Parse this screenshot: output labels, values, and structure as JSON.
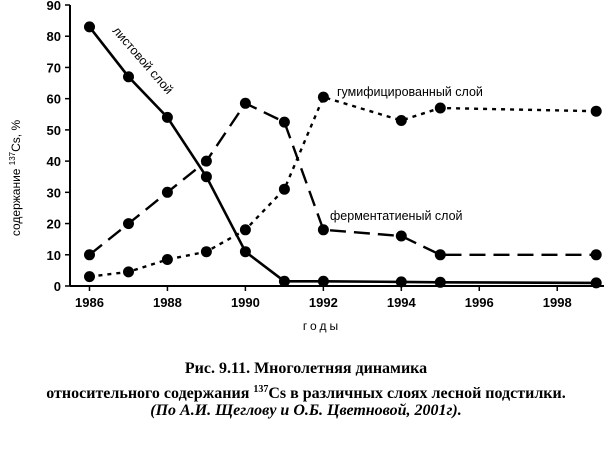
{
  "chart_data": {
    "type": "line",
    "xlabel": "годы",
    "ylabel": "содержание",
    "ylabel_sup": "137",
    "ylabel_tail": "Cs, %",
    "xlim": [
      1985.5,
      1999.2
    ],
    "ylim": [
      0,
      90
    ],
    "x_ticks": [
      "1986",
      "1988",
      "1990",
      "1992",
      "1994",
      "1996",
      "1998"
    ],
    "y_ticks": [
      "0",
      "10",
      "20",
      "30",
      "40",
      "50",
      "60",
      "70",
      "80",
      "90"
    ],
    "grid": false,
    "series": [
      {
        "name": "листовой слой",
        "style": "solid",
        "x": [
          1986,
          1987,
          1988,
          1989,
          1990,
          1991,
          1992,
          1994,
          1995,
          1999
        ],
        "y": [
          83,
          67,
          54,
          35,
          11,
          1.5,
          1.5,
          1.3,
          1.2,
          1
        ]
      },
      {
        "name": "гумифицированный слой",
        "style": "dotted",
        "x": [
          1986,
          1987,
          1988,
          1989,
          1990,
          1991,
          1992,
          1994,
          1995,
          1999
        ],
        "y": [
          3,
          4.5,
          8.5,
          11,
          18,
          31,
          60.5,
          53,
          57,
          56
        ]
      },
      {
        "name": "ферментатиеный слой",
        "style": "dashed",
        "x": [
          1986,
          1987,
          1988,
          1989,
          1990,
          1991,
          1992,
          1994,
          1995,
          1999
        ],
        "y": [
          10,
          20,
          30,
          40,
          58.5,
          52.5,
          18,
          16,
          10,
          10
        ]
      }
    ]
  },
  "caption": {
    "line1": "Рис. 9.11. Многолетняя динамика",
    "line2_pre": "относительного содержания ",
    "line2_sup": "137",
    "line2_post": "Cs в различных слоях лесной подстилки.",
    "line3": "(По А.И. Щеглову и О.Б. Цветновой, 2001г)."
  }
}
